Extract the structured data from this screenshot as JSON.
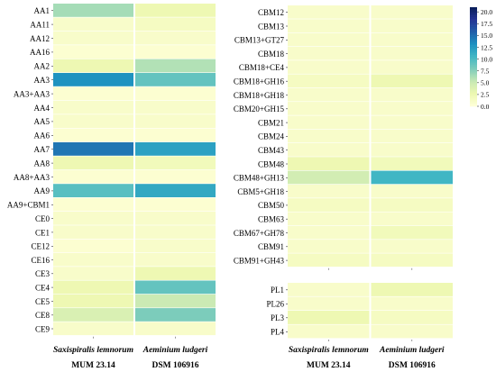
{
  "chart_data": [
    {
      "type": "heatmap",
      "columns": [
        {
          "name": "Saxispiralis lemnorum",
          "strain": "MUM 23.14"
        },
        {
          "name": "Aeminium ludgeri",
          "strain": "DSM 106916"
        }
      ],
      "groups": [
        {
          "rows": [
            {
              "label": "AA1",
              "values": [
                6.5,
                2.5
              ]
            },
            {
              "label": "AA11",
              "values": [
                1.0,
                1.5
              ]
            },
            {
              "label": "AA12",
              "values": [
                1.0,
                1.0
              ]
            },
            {
              "label": "AA16",
              "values": [
                0.5,
                0.5
              ]
            },
            {
              "label": "AA2",
              "values": [
                2.5,
                6.0
              ]
            },
            {
              "label": "AA3",
              "values": [
                13.0,
                9.0
              ]
            },
            {
              "label": "AA3+AA3",
              "values": [
                0.5,
                0.5
              ]
            },
            {
              "label": "AA4",
              "values": [
                1.0,
                1.0
              ]
            },
            {
              "label": "AA5",
              "values": [
                1.0,
                1.0
              ]
            },
            {
              "label": "AA6",
              "values": [
                0.5,
                0.5
              ]
            },
            {
              "label": "AA7",
              "values": [
                14.5,
                12.0
              ]
            },
            {
              "label": "AA8",
              "values": [
                2.5,
                2.0
              ]
            },
            {
              "label": "AA8+AA3",
              "values": [
                0.5,
                0.5
              ]
            },
            {
              "label": "AA9",
              "values": [
                9.5,
                11.5
              ]
            },
            {
              "label": "AA9+CBM1",
              "values": [
                0.5,
                0.5
              ]
            }
          ]
        },
        {
          "rows": [
            {
              "label": "CE0",
              "values": [
                1.0,
                1.0
              ]
            },
            {
              "label": "CE1",
              "values": [
                1.0,
                1.0
              ]
            },
            {
              "label": "CE12",
              "values": [
                0.5,
                1.0
              ]
            },
            {
              "label": "CE16",
              "values": [
                1.0,
                1.0
              ]
            },
            {
              "label": "CE3",
              "values": [
                1.0,
                2.5
              ]
            },
            {
              "label": "CE4",
              "values": [
                2.5,
                9.0
              ]
            },
            {
              "label": "CE5",
              "values": [
                2.5,
                5.0
              ]
            },
            {
              "label": "CE8",
              "values": [
                4.0,
                8.0
              ]
            },
            {
              "label": "CE9",
              "values": [
                1.0,
                1.0
              ]
            }
          ]
        },
        {
          "rows": [
            {
              "label": "CBM12",
              "values": [
                1.0,
                1.0
              ]
            },
            {
              "label": "CBM13",
              "values": [
                1.0,
                1.0
              ]
            },
            {
              "label": "CBM13+GT27",
              "values": [
                1.0,
                1.0
              ]
            },
            {
              "label": "CBM18",
              "values": [
                1.0,
                1.0
              ]
            },
            {
              "label": "CBM18+CE4",
              "values": [
                1.0,
                1.0
              ]
            },
            {
              "label": "CBM18+GH16",
              "values": [
                1.5,
                2.5
              ]
            },
            {
              "label": "CBM18+GH18",
              "values": [
                1.0,
                1.0
              ]
            },
            {
              "label": "CBM20+GH15",
              "values": [
                1.0,
                1.0
              ]
            },
            {
              "label": "CBM21",
              "values": [
                1.0,
                1.0
              ]
            },
            {
              "label": "CBM24",
              "values": [
                1.0,
                1.0
              ]
            },
            {
              "label": "CBM43",
              "values": [
                1.0,
                1.0
              ]
            },
            {
              "label": "CBM48",
              "values": [
                2.5,
                2.0
              ]
            },
            {
              "label": "CBM48+GH13",
              "values": [
                4.5,
                10.5
              ]
            },
            {
              "label": "CBM5+GH18",
              "values": [
                1.0,
                1.0
              ]
            },
            {
              "label": "CBM50",
              "values": [
                1.5,
                1.5
              ]
            },
            {
              "label": "CBM63",
              "values": [
                1.0,
                1.0
              ]
            },
            {
              "label": "CBM67+GH78",
              "values": [
                1.0,
                2.0
              ]
            },
            {
              "label": "CBM91",
              "values": [
                1.0,
                1.0
              ]
            },
            {
              "label": "CBM91+GH43",
              "values": [
                1.5,
                1.5
              ]
            }
          ]
        },
        {
          "rows": [
            {
              "label": "PL1",
              "values": [
                1.0,
                2.5
              ]
            },
            {
              "label": "PL26",
              "values": [
                1.0,
                1.0
              ]
            },
            {
              "label": "PL3",
              "values": [
                2.5,
                1.5
              ]
            },
            {
              "label": "PL4",
              "values": [
                1.0,
                1.0
              ]
            }
          ]
        }
      ]
    }
  ],
  "colorbar": {
    "ticks": [
      "20.0",
      "17.5",
      "15.0",
      "12.5",
      "10.0",
      "7.5",
      "5.0",
      "2.5",
      "0.0"
    ],
    "min": 0,
    "max": 21,
    "colormap": "YlGnBu",
    "stops": [
      "#ffffd9",
      "#edf8b1",
      "#c7e9b4",
      "#7fcdbb",
      "#41b6c4",
      "#1d91c0",
      "#225ea8",
      "#253494",
      "#081d58"
    ]
  }
}
